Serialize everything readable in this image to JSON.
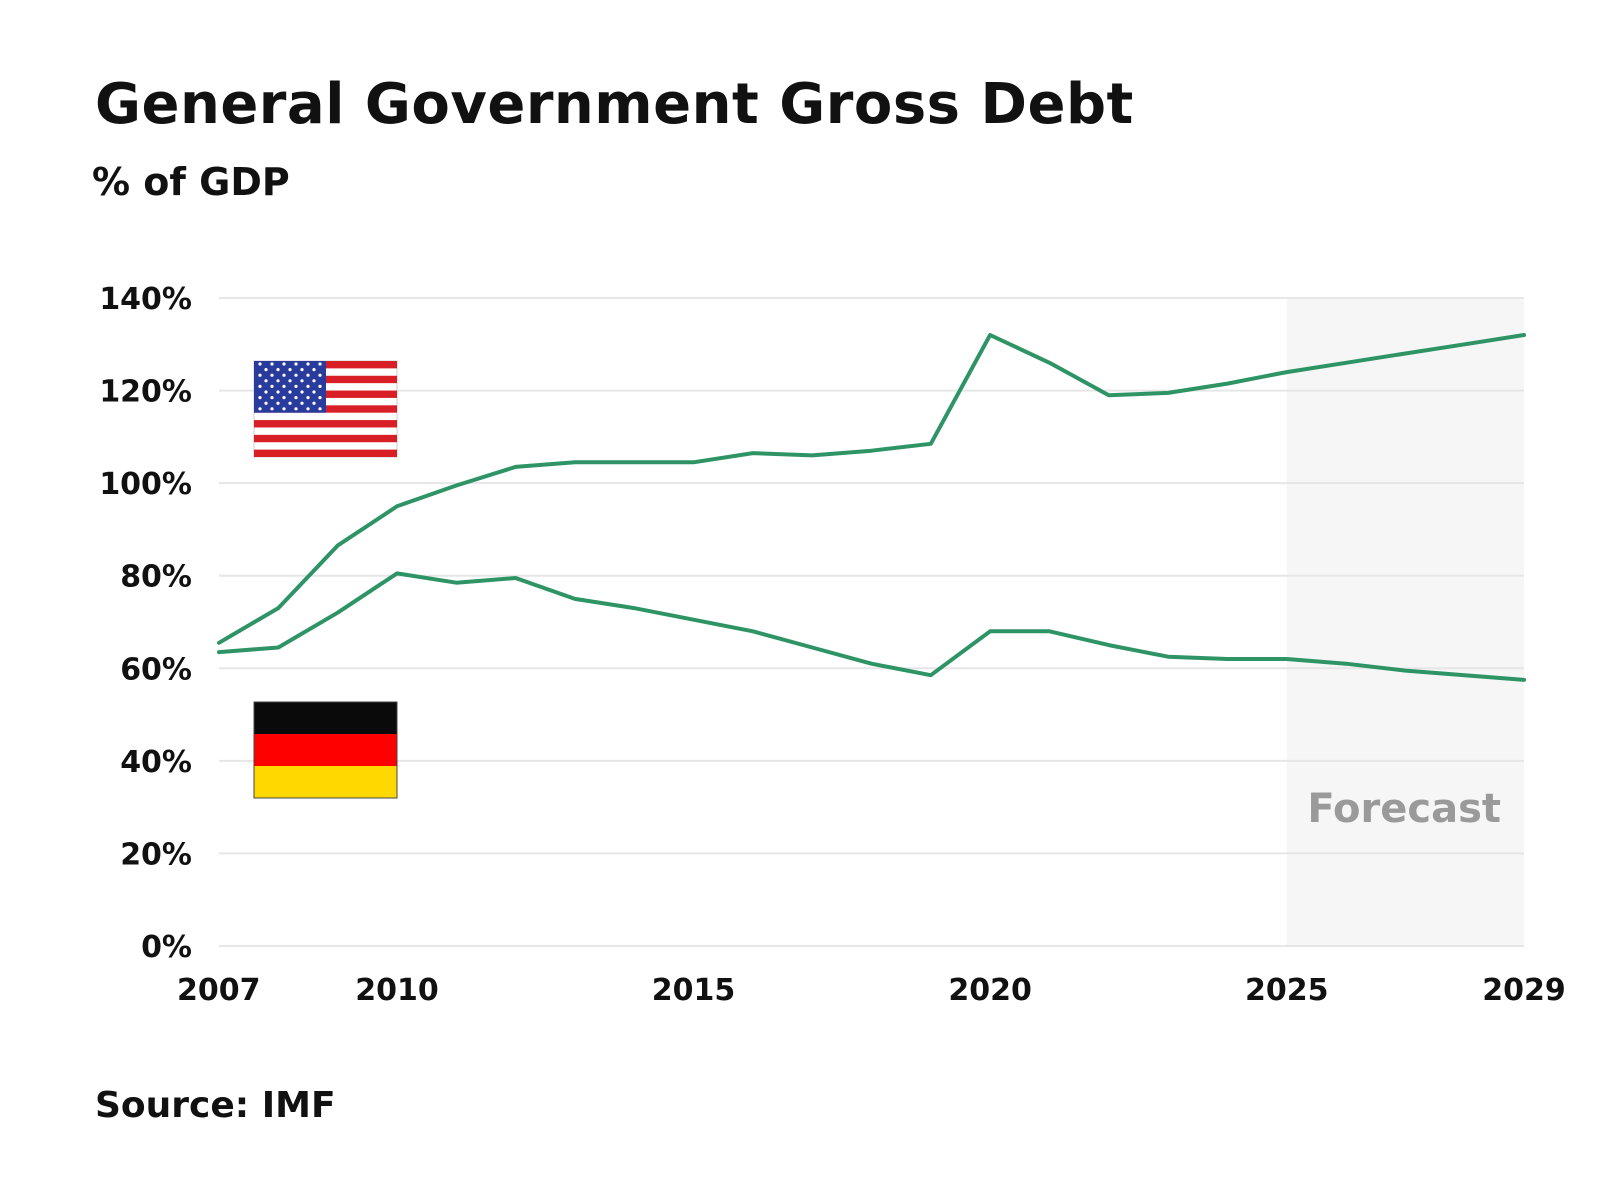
{
  "header": {
    "title": "General Government Gross Debt",
    "subtitle": "% of GDP"
  },
  "footer": {
    "source": "Source: IMF"
  },
  "colors": {
    "line": "#2e9466",
    "grid": "#e6e6e6",
    "forecast_bg": "#f6f6f6",
    "forecast_text": "#9a9a9a"
  },
  "chart_data": {
    "type": "line",
    "title": "General Government Gross Debt",
    "subtitle": "% of GDP",
    "xlabel": "",
    "ylabel": "% of GDP",
    "xlim": [
      2007,
      2029
    ],
    "ylim": [
      0,
      140
    ],
    "grid": true,
    "x_ticks": [
      {
        "value": 2007,
        "label": "2007"
      },
      {
        "value": 2010,
        "label": "2010"
      },
      {
        "value": 2015,
        "label": "2015"
      },
      {
        "value": 2020,
        "label": "2020"
      },
      {
        "value": 2025,
        "label": "2025"
      },
      {
        "value": 2029,
        "label": "2029"
      }
    ],
    "y_ticks": [
      {
        "value": 0,
        "label": "0%"
      },
      {
        "value": 20,
        "label": "20%"
      },
      {
        "value": 40,
        "label": "40%"
      },
      {
        "value": 60,
        "label": "60%"
      },
      {
        "value": 80,
        "label": "80%"
      },
      {
        "value": 100,
        "label": "100%"
      },
      {
        "value": 120,
        "label": "120%"
      },
      {
        "value": 140,
        "label": "140%"
      }
    ],
    "forecast": {
      "start": 2025,
      "end": 2029,
      "label": "Forecast"
    },
    "series": [
      {
        "name": "United States",
        "legend": "us-flag",
        "x": [
          2007,
          2008,
          2009,
          2010,
          2011,
          2012,
          2013,
          2014,
          2015,
          2016,
          2017,
          2018,
          2019,
          2020,
          2021,
          2022,
          2023,
          2024,
          2025,
          2026,
          2027,
          2028,
          2029
        ],
        "values": [
          65.5,
          73,
          86.5,
          95,
          99.5,
          103.5,
          104.5,
          104.5,
          104.5,
          106.5,
          106,
          107,
          108.5,
          132,
          126,
          119,
          119.5,
          121.5,
          124,
          126,
          128,
          130,
          132
        ]
      },
      {
        "name": "Germany",
        "legend": "germany-flag",
        "x": [
          2007,
          2008,
          2009,
          2010,
          2011,
          2012,
          2013,
          2014,
          2015,
          2016,
          2017,
          2018,
          2019,
          2020,
          2021,
          2022,
          2023,
          2024,
          2025,
          2026,
          2027,
          2028,
          2029
        ],
        "values": [
          63.5,
          64.5,
          72,
          80.5,
          78.5,
          79.5,
          75,
          73,
          70.5,
          68,
          64.5,
          61,
          58.5,
          68,
          68,
          65,
          62.5,
          62,
          62,
          61,
          59.5,
          58.5,
          57.5
        ]
      }
    ]
  }
}
